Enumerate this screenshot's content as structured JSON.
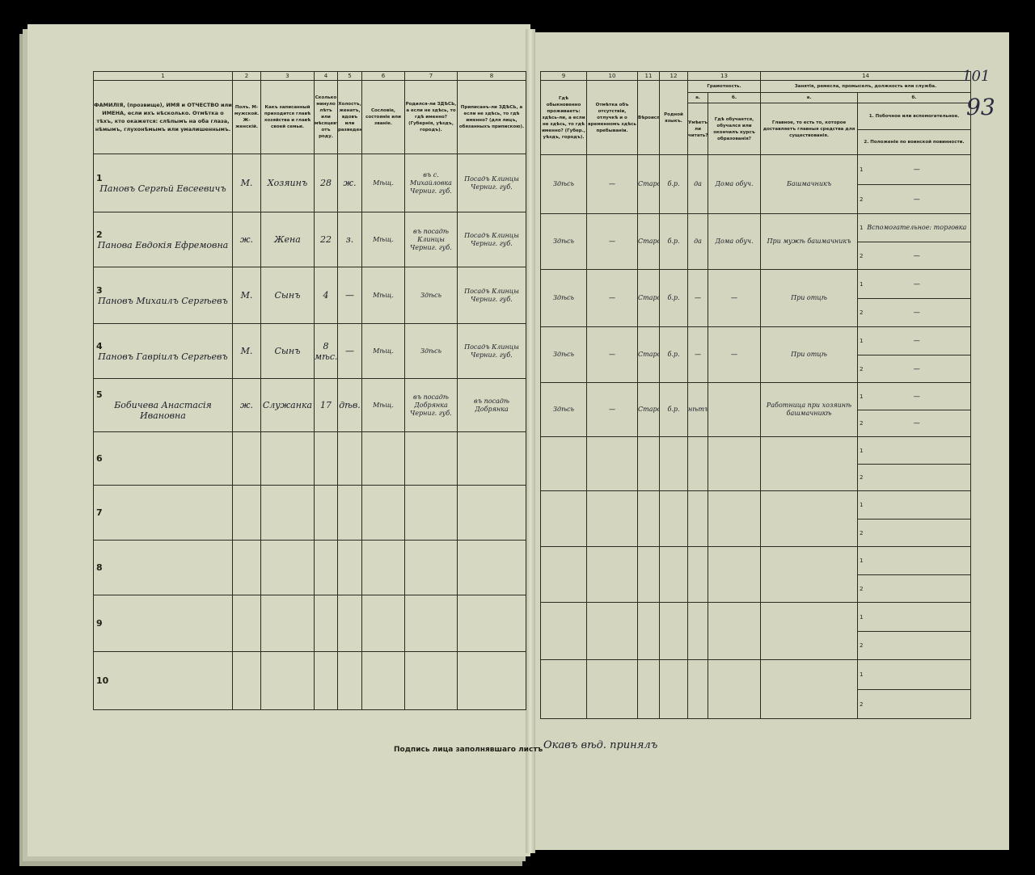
{
  "page_marks": {
    "page_number": "101",
    "sheet_number": "93"
  },
  "left_headers": [
    {
      "num": "1",
      "text": "ФАМИЛІЯ, (прозвище), ИМЯ и ОТЧЕСТВО или ИМЕНА, если ихъ нѣсколько. Отмѣтка о тѣхъ, кто окажется: слѣпымъ на оба глаза, нѣмымъ, глухонѣмымъ или умалишеннымъ."
    },
    {
      "num": "2",
      "text": "Полъ. М-мужской. Ж-женскій."
    },
    {
      "num": "3",
      "text": "Какъ записанный приходится главѣ хозяйства и главѣ своей семьи."
    },
    {
      "num": "4",
      "text": "Сколько минуло лѣтъ или мѣсяцевъ отъ роду."
    },
    {
      "num": "5",
      "text": "Холостъ, женатъ, вдовъ или разведенъ."
    },
    {
      "num": "6",
      "text": "Сословіе, состояніе или званіе."
    },
    {
      "num": "7",
      "text": "Родился-ли ЗДѢСЬ, а если не здѣсь, то гдѣ именно? (Губернія, уѣздъ, городъ)."
    },
    {
      "num": "8",
      "text": "Приписанъ-ли ЗДѢСЬ, а если не здѣсь, то гдѣ именно? (для лицъ, обязанныхъ припискою)."
    }
  ],
  "right_headers": {
    "col9": {
      "num": "9",
      "text": "Гдѣ обыкновенно проживаетъ: здѣсь-ли, а если не здѣсь, то гдѣ именно? (Губер., уѣздъ, городъ)."
    },
    "col10": {
      "num": "10",
      "text": "Отмѣтка объ отсутствіи, отлучкѣ и о временномъ здѣсь пребываніи."
    },
    "col11": {
      "num": "11",
      "text": "Вѣроисповѣданіе."
    },
    "col12": {
      "num": "12",
      "text": "Родной языкъ."
    },
    "col13": {
      "num": "13",
      "title": "Грамотность.",
      "a_label": "а.",
      "a_text": "Умѣетъ-ли читать?",
      "b_label": "б.",
      "b_text": "Гдѣ обучается, обучался или окончилъ курсъ образованія?"
    },
    "col14": {
      "num": "14",
      "title": "Занятія, ремесла, промыселъ, должность или служба.",
      "a_label": "а.",
      "a_text": "Главное, то есть то, которое доставляетъ главныя средства для существованія.",
      "b_label": "б.",
      "b1": "1. Побочное или вспомогательное.",
      "b2": "2. Положеніе по воинской повинности."
    }
  },
  "rows": [
    {
      "n": "1",
      "name": "Пановъ Сергѣй Евсеевичъ",
      "sex": "М.",
      "relation": "Хозяинъ",
      "age": "28",
      "marital": "ж.",
      "estate": "Мѣщ.",
      "born": "въ с. Михайловка Черниг. губ.",
      "registered": "Посадъ Клинцы Черниг. губ.",
      "residence": "Здѣсь",
      "absence": "—",
      "religion": "Старообрядецъ",
      "language": "б.р.",
      "literate": "да",
      "education": "Дома обуч.",
      "occupation": "Башмачникъ",
      "side1": "—",
      "side2": "—"
    },
    {
      "n": "2",
      "name": "Панова Евдокія Ефремовна",
      "sex": "ж.",
      "relation": "Жена",
      "age": "22",
      "marital": "з.",
      "estate": "Мѣщ.",
      "born": "въ посадѣ Клинцы Черниг. губ.",
      "registered": "Посадъ Клинцы Черниг. губ.",
      "residence": "Здѣсь",
      "absence": "—",
      "religion": "Старообр.",
      "language": "б.р.",
      "literate": "да",
      "education": "Дома обуч.",
      "occupation": "При мужѣ башмачникъ",
      "side1": "Вспомогательное: торговка",
      "side2": "—"
    },
    {
      "n": "3",
      "name": "Пановъ Михаилъ Сергѣевъ",
      "sex": "М.",
      "relation": "Сынъ",
      "age": "4",
      "marital": "—",
      "estate": "Мѣщ.",
      "born": "Здѣсь",
      "registered": "Посадъ Клинцы Черниг. губ.",
      "residence": "Здѣсь",
      "absence": "—",
      "religion": "Старообр.",
      "language": "б.р.",
      "literate": "—",
      "education": "—",
      "occupation": "При отцѣ",
      "side1": "—",
      "side2": "—"
    },
    {
      "n": "4",
      "name": "Пановъ Гавріилъ Сергѣевъ",
      "sex": "М.",
      "relation": "Сынъ",
      "age": "8 мѣс.",
      "marital": "—",
      "estate": "Мѣщ.",
      "born": "Здѣсь",
      "registered": "Посадъ Клинцы Черниг. губ.",
      "residence": "Здѣсь",
      "absence": "—",
      "religion": "Старообр.",
      "language": "б.р.",
      "literate": "—",
      "education": "—",
      "occupation": "При отцѣ",
      "side1": "—",
      "side2": "—"
    },
    {
      "n": "5",
      "name": "Бобичева Анастасія Ивановна",
      "sex": "ж.",
      "relation": "Служанка",
      "age": "17",
      "marital": "дѣв.",
      "estate": "Мѣщ.",
      "born": "въ посадѣ Добрянка Черниг. губ.",
      "registered": "въ посадѣ Добрянка",
      "residence": "Здѣсь",
      "absence": "—",
      "religion": "Старообр.",
      "language": "б.р.",
      "literate": "нѣтъ",
      "education": "",
      "occupation": "Работница при хозяинѣ башмачникѣ",
      "side1": "—",
      "side2": "—"
    },
    {
      "n": "6"
    },
    {
      "n": "7"
    },
    {
      "n": "8"
    },
    {
      "n": "9"
    },
    {
      "n": "10"
    }
  ],
  "signature": {
    "label": "Подпись лица заполнявшаго листъ",
    "value": "Окавъ вѣд. принялъ"
  }
}
